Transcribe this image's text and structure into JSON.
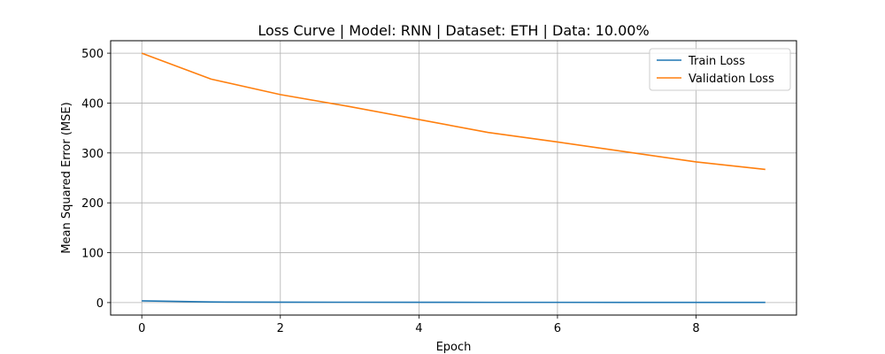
{
  "chart_data": {
    "type": "line",
    "title": "Loss Curve | Model: RNN | Dataset: ETH | Data: 10.00%",
    "xlabel": "Epoch",
    "ylabel": "Mean Squared Error (MSE)",
    "x": [
      0,
      1,
      2,
      3,
      4,
      5,
      6,
      7,
      8,
      9
    ],
    "xlim": [
      -0.45,
      9.45
    ],
    "ylim": [
      -25,
      525
    ],
    "xticks": [
      0,
      2,
      4,
      6,
      8
    ],
    "yticks": [
      0,
      100,
      200,
      300,
      400,
      500
    ],
    "grid": true,
    "legend_position": "top-right",
    "series": [
      {
        "name": "Train Loss",
        "color": "#1f77b4",
        "values": [
          3.5,
          1.2,
          0.9,
          0.7,
          0.6,
          0.5,
          0.5,
          0.4,
          0.4,
          0.4
        ]
      },
      {
        "name": "Validation Loss",
        "color": "#ff7f0e",
        "values": [
          500,
          448,
          417,
          393,
          367,
          341,
          322,
          302,
          282,
          267
        ]
      }
    ]
  }
}
